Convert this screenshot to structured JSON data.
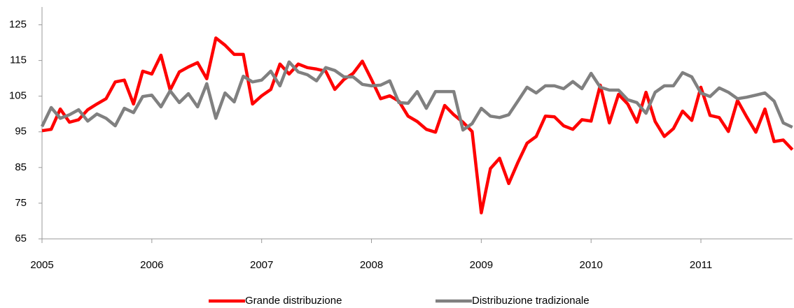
{
  "chart_data": {
    "type": "line",
    "categories": [
      "2005",
      null,
      null,
      null,
      null,
      null,
      null,
      null,
      null,
      null,
      null,
      null,
      "2006",
      null,
      null,
      null,
      null,
      null,
      null,
      null,
      null,
      null,
      null,
      null,
      "2007",
      null,
      null,
      null,
      null,
      null,
      null,
      null,
      null,
      null,
      null,
      null,
      "2008",
      null,
      null,
      null,
      null,
      null,
      null,
      null,
      null,
      null,
      null,
      null,
      "2009",
      null,
      null,
      null,
      null,
      null,
      null,
      null,
      null,
      null,
      null,
      null,
      "2010",
      null,
      null,
      null,
      null,
      null,
      null,
      null,
      null,
      null,
      null,
      null,
      "2011",
      null,
      null,
      null,
      null,
      null,
      null,
      null,
      null,
      null,
      null
    ],
    "series": [
      {
        "name": "Grande distribuzione",
        "color": "#ff0000",
        "values": [
          95.3,
          95.7,
          101.4,
          97.7,
          98.4,
          101.2,
          102.8,
          104.3,
          109,
          109.5,
          102.8,
          112,
          111.2,
          116.5,
          106.7,
          111.8,
          113.2,
          114.4,
          109.9,
          121.3,
          119.3,
          116.7,
          116.7,
          102.8,
          105.1,
          106.9,
          114,
          111.2,
          114,
          113,
          112.6,
          112,
          106.9,
          109.7,
          111.4,
          114.8,
          109.7,
          104.3,
          105.1,
          103.6,
          99.4,
          97.9,
          95.7,
          94.9,
          102.4,
          99.8,
          97.7,
          95.1,
          72.3,
          84.7,
          87.6,
          80.5,
          86.4,
          91.8,
          93.7,
          99.4,
          99.2,
          96.7,
          95.7,
          98.4,
          98,
          108.1,
          97.5,
          105.5,
          102.8,
          97.7,
          106.1,
          97.9,
          93.7,
          95.9,
          100.8,
          98.2,
          107.5,
          99.6,
          99,
          95.1,
          103.8,
          99.2,
          94.9,
          101.4,
          92.3,
          92.7,
          90
        ]
      },
      {
        "name": "Distribuzione tradizionale",
        "color": "#808080",
        "values": [
          96.5,
          101.8,
          98.8,
          99.8,
          101.2,
          98,
          100,
          98.8,
          96.7,
          101.6,
          100.4,
          104.9,
          105.3,
          102,
          106.5,
          103.2,
          105.7,
          102,
          108.5,
          98.8,
          105.9,
          103.4,
          110.6,
          109,
          109.5,
          112,
          107.9,
          114.6,
          111.8,
          111,
          109.3,
          113,
          112.2,
          110.4,
          110.4,
          108.3,
          107.9,
          108.1,
          109.3,
          103.2,
          103,
          106.3,
          101.6,
          106.3,
          106.3,
          106.3,
          95.5,
          97.3,
          101.6,
          99.4,
          99,
          99.8,
          103.6,
          107.5,
          105.9,
          107.9,
          107.9,
          107.1,
          109.1,
          107.1,
          111.4,
          107.5,
          106.7,
          106.7,
          104,
          103.2,
          100.2,
          106.1,
          107.9,
          107.9,
          111.6,
          110.4,
          105.9,
          104.9,
          107.3,
          106.1,
          104.3,
          104.7,
          105.3,
          105.9,
          103.6,
          97.5,
          96.3
        ]
      }
    ],
    "ylim": [
      65,
      130
    ],
    "yticks": [
      65,
      75,
      85,
      95,
      105,
      115,
      125
    ],
    "grid": false,
    "legend": "bottom"
  }
}
